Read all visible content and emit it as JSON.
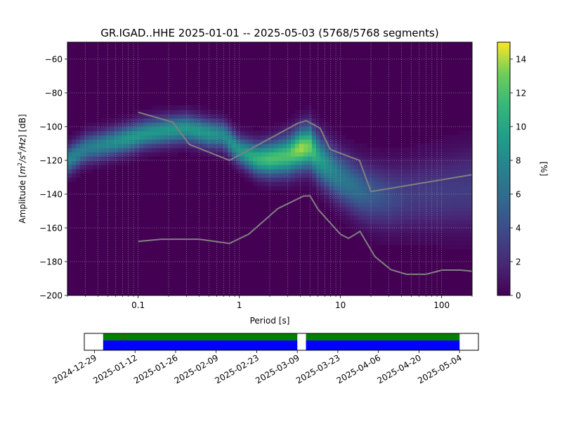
{
  "chart_data": [
    {
      "type": "heatmap",
      "title": "GR.IGAD..HHE   2025-01-01 -- 2025-05-03  (5768/5768 segments)",
      "xlabel": "Period [s]",
      "ylabel_prefix": "Amplitude [",
      "ylabel_suffix": "] [dB]",
      "ylabel_units": {
        "m": "m",
        "e1": "2",
        "s": "/s",
        "e2": "4",
        "hz": "/Hz"
      },
      "xscale": "log",
      "xlim": [
        0.02,
        200
      ],
      "ylim": [
        -200,
        -50
      ],
      "x_ticks": [
        {
          "value": 0.1,
          "label": "0.1"
        },
        {
          "value": 1,
          "label": "1"
        },
        {
          "value": 10,
          "label": "10"
        },
        {
          "value": 100,
          "label": "100"
        }
      ],
      "y_ticks": [
        {
          "value": -60,
          "label": "−60"
        },
        {
          "value": -80,
          "label": "−80"
        },
        {
          "value": -100,
          "label": "−100"
        },
        {
          "value": -120,
          "label": "−120"
        },
        {
          "value": -140,
          "label": "−140"
        },
        {
          "value": -160,
          "label": "−160"
        },
        {
          "value": -180,
          "label": "−180"
        },
        {
          "value": -200,
          "label": "−200"
        }
      ],
      "grid": true,
      "colormap": "viridis",
      "colorbar": {
        "label": "[%]",
        "range": [
          0,
          15
        ],
        "ticks": [
          {
            "value": 0,
            "label": "0"
          },
          {
            "value": 2,
            "label": "2"
          },
          {
            "value": 4,
            "label": "4"
          },
          {
            "value": 6,
            "label": "6"
          },
          {
            "value": 8,
            "label": "8"
          },
          {
            "value": 10,
            "label": "10"
          },
          {
            "value": 12,
            "label": "12"
          },
          {
            "value": 14,
            "label": "14"
          }
        ]
      },
      "psd_band": {
        "period": [
          0.02,
          0.03,
          0.05,
          0.08,
          0.12,
          0.2,
          0.3,
          0.5,
          0.7,
          1.0,
          1.5,
          2.0,
          3.0,
          4.0,
          5.0,
          6.0,
          8.0,
          10,
          15,
          20,
          30,
          50,
          100,
          200
        ],
        "center_db": [
          -120,
          -113,
          -110,
          -107,
          -104,
          -102,
          -101,
          -104,
          -105,
          -114,
          -119,
          -119,
          -117,
          -113,
          -112,
          -118,
          -125,
          -130,
          -137,
          -140,
          -142,
          -141,
          -139,
          -137
        ],
        "peak_percent": [
          8,
          7,
          8,
          9,
          9,
          9,
          9,
          9,
          8,
          9,
          11,
          12,
          12,
          14,
          13,
          10,
          8,
          7,
          6,
          5,
          4,
          3,
          3,
          3
        ]
      },
      "series": [
        {
          "x": [
            0.1,
            0.17,
            0.4,
            0.8,
            1.24,
            2.4,
            4.3,
            5.0,
            6.0,
            10.0,
            12.0,
            15.6,
            21.9,
            31.6,
            45.0,
            70.0,
            101.0,
            154.0,
            200.0
          ],
          "y": [
            -168,
            -166.7,
            -166.7,
            -169.2,
            -163.7,
            -148.6,
            -141.2,
            -141.0,
            -149.0,
            -163.8,
            -166.2,
            -162.1,
            -177.0,
            -184.8,
            -187.5,
            -187.5,
            -185.0,
            -185.0,
            -185.7
          ]
        },
        {
          "x": [
            0.1,
            0.22,
            0.32,
            0.8,
            3.8,
            4.6,
            6.3,
            7.9,
            15.4,
            20.0,
            200.0
          ],
          "y": [
            -91.5,
            -97.4,
            -110.5,
            -120.0,
            -98.0,
            -96.5,
            -101.0,
            -113.5,
            -120.0,
            -138.5,
            -128.5
          ]
        }
      ]
    },
    {
      "type": "timeline",
      "x_ticks": [
        {
          "label": "2024-12-29"
        },
        {
          "label": "2025-01-12"
        },
        {
          "label": "2025-01-26"
        },
        {
          "label": "2025-02-09"
        },
        {
          "label": "2025-02-23"
        },
        {
          "label": "2025-03-09"
        },
        {
          "label": "2025-03-23"
        },
        {
          "label": "2025-04-06"
        },
        {
          "label": "2025-04-20"
        },
        {
          "label": "2025-05-04"
        }
      ],
      "x_tick_days": [
        0,
        14,
        28,
        42,
        56,
        70,
        84,
        98,
        112,
        126
      ],
      "xlim_days": [
        -3.5,
        132.5
      ],
      "coverage_segments_days": [
        [
          3,
          70
        ],
        [
          73,
          126
        ]
      ],
      "colors": {
        "upper": "#008000",
        "lower": "#0000ff",
        "marker": "#ff0000"
      }
    }
  ]
}
